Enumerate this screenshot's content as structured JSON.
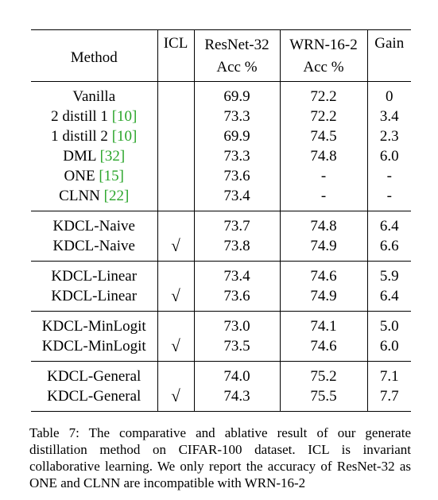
{
  "table": {
    "headers": {
      "method": "Method",
      "icl": "ICL",
      "resnet_line1": "ResNet-32",
      "resnet_line2": "Acc %",
      "wrn_line1": "WRN-16-2",
      "wrn_line2": "Acc %",
      "gain": "Gain"
    },
    "groups": [
      {
        "rows": [
          {
            "method": "Vanilla",
            "cite": "",
            "icl": "",
            "resnet": "69.9",
            "wrn": "72.2",
            "gain": "0",
            "bold": false
          },
          {
            "method": "2 distill 1 ",
            "cite": "[10]",
            "icl": "",
            "resnet": "73.3",
            "wrn": "72.2",
            "gain": "3.4",
            "bold": false
          },
          {
            "method": "1 distill 2 ",
            "cite": "[10]",
            "icl": "",
            "resnet": "69.9",
            "wrn": "74.5",
            "gain": "2.3",
            "bold": false
          },
          {
            "method": "DML ",
            "cite": "[32]",
            "icl": "",
            "resnet": "73.3",
            "wrn": "74.8",
            "gain": "6.0",
            "bold": false
          },
          {
            "method": "ONE ",
            "cite": "[15]",
            "icl": "",
            "resnet": "73.6",
            "wrn": "-",
            "gain": "-",
            "bold": false
          },
          {
            "method": "CLNN ",
            "cite": "[22]",
            "icl": "",
            "resnet": "73.4",
            "wrn": "-",
            "gain": "-",
            "bold": false
          }
        ]
      },
      {
        "rows": [
          {
            "method": "KDCL-Naive",
            "cite": "",
            "icl": "",
            "resnet": "73.7",
            "wrn": "74.8",
            "gain": "6.4",
            "bold": false
          },
          {
            "method": "KDCL-Naive",
            "cite": "",
            "icl": "√",
            "resnet": "73.8",
            "wrn": "74.9",
            "gain": "6.6",
            "bold": false
          }
        ]
      },
      {
        "rows": [
          {
            "method": "KDCL-Linear",
            "cite": "",
            "icl": "",
            "resnet": "73.4",
            "wrn": "74.6",
            "gain": "5.9",
            "bold": false
          },
          {
            "method": "KDCL-Linear",
            "cite": "",
            "icl": "√",
            "resnet": "73.6",
            "wrn": "74.9",
            "gain": "6.4",
            "bold": false
          }
        ]
      },
      {
        "rows": [
          {
            "method": "KDCL-MinLogit",
            "cite": "",
            "icl": "",
            "resnet": "73.0",
            "wrn": "74.1",
            "gain": "5.0",
            "bold": false
          },
          {
            "method": "KDCL-MinLogit",
            "cite": "",
            "icl": "√",
            "resnet": "73.5",
            "wrn": "74.6",
            "gain": "6.0",
            "bold": false
          }
        ]
      },
      {
        "rows": [
          {
            "method": "KDCL-General",
            "cite": "",
            "icl": "",
            "resnet": "74.0",
            "wrn": "75.2",
            "gain": "7.1",
            "bold": false
          },
          {
            "method": "KDCL-General",
            "cite": "",
            "icl": "√",
            "resnet": "74.3",
            "wrn": "75.5",
            "gain": "7.7",
            "bold": true
          }
        ]
      }
    ]
  },
  "caption": "Table 7: The comparative and ablative result of our generate distillation method on CIFAR-100 dataset. ICL is invariant collaborative learning. We only report the accuracy of ResNet-32 as ONE and CLNN are incompatible with WRN-16-2"
}
